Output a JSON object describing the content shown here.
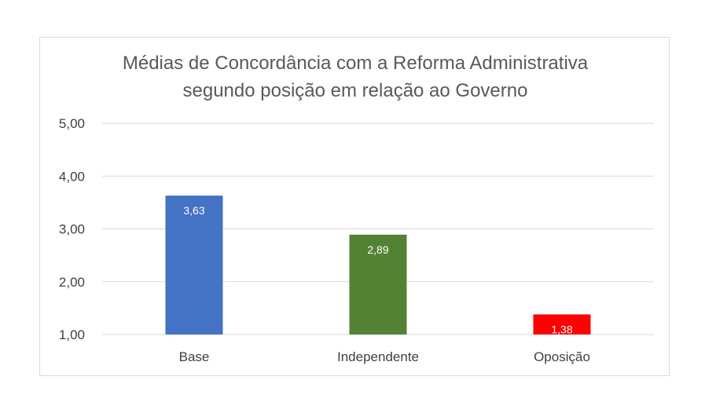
{
  "chart_data": {
    "type": "bar",
    "title": [
      "Médias de Concordância com a Reforma Administrativa",
      "segundo posição em relação ao Governo"
    ],
    "categories": [
      "Base",
      "Independente",
      "Oposição"
    ],
    "values": [
      3.63,
      2.89,
      1.38
    ],
    "data_labels": [
      "3,63",
      "2,89",
      "1,38"
    ],
    "bar_colors": [
      "#4472c4",
      "#548235",
      "#ff0000"
    ],
    "ylim": [
      1,
      5
    ],
    "yticks": [
      1,
      2,
      3,
      4,
      5
    ],
    "ytick_labels": [
      "1,00",
      "2,00",
      "3,00",
      "4,00",
      "5,00"
    ],
    "grid": true,
    "legend": "none"
  }
}
